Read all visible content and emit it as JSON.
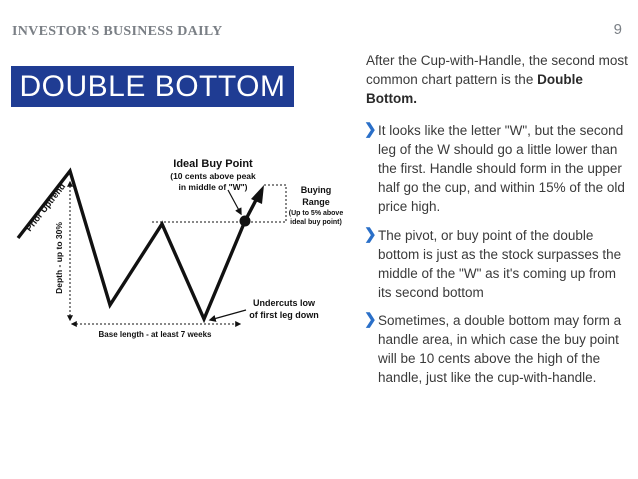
{
  "header": {
    "brand": "INVESTOR'S BUSINESS DAILY",
    "page_number": "9"
  },
  "title": "DOUBLE BOTTOM",
  "diagram": {
    "prior_uptrend": "Prior Uptrend",
    "depth": "Depth - up to 30%",
    "ideal_buy_point_title": "Ideal Buy Point",
    "ideal_buy_point_line2": "(10 cents above peak",
    "ideal_buy_point_line3": "in middle of \"W\")",
    "buying_range_line1": "Buying",
    "buying_range_line2": "Range",
    "buying_range_line3": "(Up to 5% above",
    "buying_range_line4": "ideal buy point)",
    "undercuts_line1": "Undercuts low",
    "undercuts_line2": "of first leg down",
    "base_length": "Base length - at least 7 weeks"
  },
  "intro": {
    "text_before": "After the Cup-with-Handle, the second most common chart pattern is the ",
    "emphasis": "Double Bottom."
  },
  "bullets": [
    {
      "text": "It looks like the letter \"W\", but the second leg of the W should go a little lower than the first. Handle should form in the upper half go the cup, and within 15% of the old price high."
    },
    {
      "text": "The pivot, or buy point of the double bottom is just as the stock surpasses the middle of the \"W\" as it's coming up from its second bottom"
    },
    {
      "text": "Sometimes, a double bottom may form a handle area, in which case the buy point will be 10 cents above the high of the handle, just like the cup-with-handle."
    }
  ],
  "colors": {
    "title_bg": "#1f3c93",
    "bullet_chevron": "#2a6fc8",
    "brand_gray": "#7a7f85"
  },
  "icons": {
    "bullet": "chevron-right-icon"
  }
}
